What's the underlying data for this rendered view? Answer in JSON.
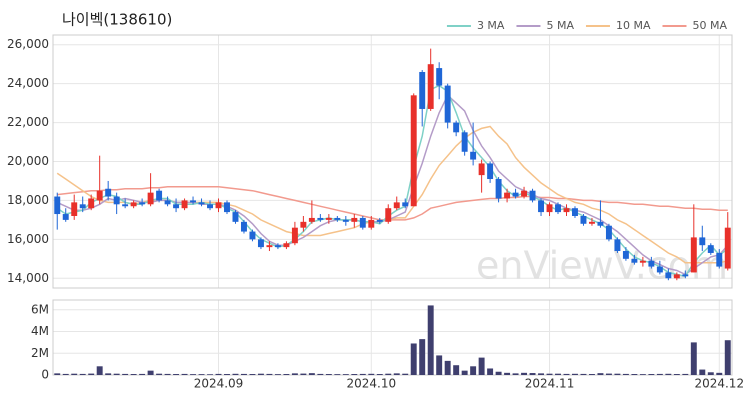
{
  "chart_data": [
    {
      "type": "candlestick",
      "title": "나이벡(138610)",
      "watermark": "enViewV.com",
      "categories": [
        null,
        null,
        null,
        null,
        null,
        null,
        null,
        null,
        null,
        null,
        null,
        null,
        null,
        null,
        null,
        null,
        null,
        null,
        null,
        null,
        null,
        null,
        null,
        null,
        null,
        null,
        null,
        null,
        null,
        null,
        null,
        null,
        null,
        null,
        null,
        null,
        null,
        null,
        null,
        null,
        null,
        null,
        null,
        null,
        null,
        null,
        null,
        null,
        null,
        null,
        null,
        null,
        null,
        null,
        null,
        null,
        null,
        null,
        null,
        null,
        null,
        null,
        null,
        null,
        null,
        null,
        null,
        null,
        null,
        null,
        null,
        null,
        null,
        null,
        null,
        null,
        null,
        null,
        null,
        null
      ],
      "open": [
        18200,
        17300,
        17200,
        17800,
        17600,
        18000,
        18600,
        18200,
        17800,
        17700,
        17900,
        17800,
        18500,
        18000,
        17800,
        17600,
        18000,
        17900,
        17800,
        17600,
        17900,
        17400,
        16900,
        16400,
        16000,
        15600,
        15700,
        15600,
        15800,
        16600,
        16900,
        17100,
        17000,
        17100,
        17000,
        16900,
        17100,
        16600,
        17000,
        16900,
        17600,
        17900,
        17700,
        24600,
        22700,
        24800,
        23900,
        22000,
        21500,
        20500,
        19300,
        19900,
        19100,
        18100,
        18400,
        18200,
        18500,
        18000,
        17400,
        17800,
        17400,
        17600,
        17200,
        16800,
        16900,
        16700,
        16000,
        15400,
        15000,
        14800,
        14900,
        14600,
        14300,
        14000,
        14200,
        14300,
        16100,
        15700,
        15300,
        14500
      ],
      "high": [
        18400,
        17600,
        18300,
        18200,
        18300,
        20300,
        19000,
        18400,
        18100,
        18000,
        18100,
        19400,
        18600,
        18200,
        18100,
        18100,
        18200,
        18100,
        18000,
        18100,
        18000,
        17500,
        17000,
        16500,
        16100,
        15900,
        15800,
        15900,
        16900,
        17200,
        18000,
        17300,
        17300,
        17200,
        17200,
        17300,
        17200,
        17200,
        17100,
        17800,
        18200,
        18100,
        23500,
        24700,
        25800,
        25100,
        24000,
        22100,
        21600,
        22000,
        20100,
        20000,
        19200,
        18600,
        18600,
        18700,
        18600,
        18100,
        17900,
        17900,
        17800,
        17700,
        17300,
        17100,
        18000,
        16800,
        16100,
        15600,
        15200,
        15100,
        15100,
        14900,
        14500,
        14300,
        14400,
        17800,
        16700,
        15800,
        15500,
        17400
      ],
      "low": [
        16500,
        16900,
        17000,
        17400,
        17500,
        17800,
        18000,
        17300,
        17600,
        17600,
        17700,
        17700,
        17900,
        17700,
        17400,
        17500,
        17800,
        17700,
        17500,
        17400,
        17300,
        16800,
        16300,
        15900,
        15500,
        15400,
        15500,
        15500,
        15700,
        16400,
        16800,
        16900,
        16800,
        16900,
        16700,
        16600,
        16500,
        16500,
        16800,
        16800,
        17500,
        17600,
        17700,
        21800,
        22600,
        23200,
        21700,
        21300,
        20300,
        19800,
        18400,
        18900,
        17900,
        17900,
        18100,
        18100,
        17900,
        17200,
        17200,
        17300,
        17200,
        17100,
        16700,
        16700,
        16600,
        15900,
        15300,
        14900,
        14700,
        14600,
        14500,
        14200,
        13900,
        13900,
        14000,
        14300,
        15400,
        15200,
        14500,
        14400
      ],
      "close": [
        17300,
        17000,
        17900,
        17600,
        18100,
        18500,
        18200,
        17800,
        17700,
        17900,
        17800,
        18400,
        18000,
        17800,
        17600,
        18000,
        17900,
        17800,
        17600,
        17900,
        17400,
        16900,
        16400,
        16000,
        15600,
        15700,
        15600,
        15800,
        16600,
        16900,
        17100,
        17000,
        17100,
        17000,
        16900,
        17100,
        16600,
        17000,
        16900,
        17600,
        17900,
        17700,
        23400,
        22700,
        25000,
        23900,
        22000,
        21500,
        20500,
        20100,
        19900,
        19100,
        18100,
        18400,
        18200,
        18500,
        18000,
        17400,
        17800,
        17400,
        17600,
        17200,
        16800,
        16900,
        16700,
        16000,
        15400,
        15000,
        14800,
        14900,
        14600,
        14300,
        14000,
        14200,
        14100,
        16100,
        15700,
        15300,
        14600,
        16600
      ],
      "up_color": "#e8302a",
      "down_color": "#1f66d6",
      "series": [
        {
          "name": "3 MA",
          "color": "#7fd1c7",
          "values": [
            17600,
            17300,
            17400,
            17500,
            17900,
            18100,
            18300,
            18200,
            17900,
            17800,
            17800,
            18000,
            18100,
            18100,
            17800,
            17800,
            17800,
            17900,
            17800,
            17800,
            17600,
            17400,
            16900,
            16400,
            16000,
            15800,
            15600,
            15700,
            16000,
            16400,
            16900,
            17000,
            17100,
            17000,
            17000,
            17000,
            16900,
            16900,
            16800,
            17200,
            17500,
            17700,
            19700,
            21300,
            23700,
            23900,
            23600,
            22500,
            21300,
            20700,
            20200,
            19700,
            19000,
            18500,
            18200,
            18400,
            18200,
            18000,
            17700,
            17500,
            17600,
            17400,
            17200,
            17000,
            16800,
            16500,
            16000,
            15500,
            15100,
            14900,
            14800,
            14600,
            14300,
            14200,
            14100,
            14800,
            15300,
            15700,
            15200,
            15500
          ]
        },
        {
          "name": "5 MA",
          "color": "#b49cc8",
          "values": [
            17900,
            17700,
            17500,
            17500,
            17600,
            17800,
            18100,
            18000,
            18100,
            18000,
            17900,
            17900,
            18000,
            18000,
            17900,
            17900,
            17900,
            17800,
            17800,
            17800,
            17700,
            17500,
            17200,
            16800,
            16300,
            15900,
            15700,
            15700,
            15900,
            16100,
            16400,
            16700,
            16900,
            17000,
            17000,
            17000,
            16900,
            16900,
            16900,
            17000,
            17200,
            17400,
            18700,
            19900,
            21300,
            22500,
            23400,
            23000,
            22600,
            21600,
            20800,
            20200,
            19500,
            19100,
            18700,
            18500,
            18300,
            18100,
            18000,
            17800,
            17600,
            17500,
            17400,
            17200,
            17000,
            16700,
            16400,
            16000,
            15600,
            15200,
            14900,
            14700,
            14500,
            14400,
            14200,
            14500,
            14800,
            15100,
            15200,
            15700
          ]
        },
        {
          "name": "10 MA",
          "color": "#f5c28a",
          "values": [
            19400,
            19100,
            18800,
            18500,
            18200,
            18000,
            17900,
            17900,
            17900,
            17800,
            17900,
            18000,
            18000,
            18000,
            17900,
            17900,
            17900,
            17900,
            17900,
            17900,
            17800,
            17700,
            17500,
            17300,
            17000,
            16800,
            16600,
            16400,
            16300,
            16200,
            16200,
            16200,
            16300,
            16400,
            16500,
            16600,
            16800,
            16900,
            16900,
            17000,
            17100,
            17100,
            17700,
            18300,
            19100,
            19800,
            20300,
            20800,
            21200,
            21500,
            21700,
            21800,
            21300,
            20900,
            20200,
            19700,
            19300,
            18900,
            18600,
            18300,
            18100,
            17900,
            17800,
            17600,
            17500,
            17300,
            17000,
            16800,
            16500,
            16200,
            15900,
            15600,
            15300,
            15100,
            14800,
            14800,
            14800,
            14800,
            14800,
            14900
          ]
        },
        {
          "name": "50 MA",
          "color": "#f29a8e",
          "values": [
            18300,
            18350,
            18400,
            18450,
            18500,
            18500,
            18550,
            18550,
            18600,
            18600,
            18600,
            18650,
            18650,
            18700,
            18700,
            18700,
            18700,
            18700,
            18700,
            18700,
            18650,
            18600,
            18550,
            18500,
            18400,
            18300,
            18200,
            18100,
            18000,
            17900,
            17800,
            17700,
            17600,
            17500,
            17400,
            17300,
            17200,
            17100,
            17000,
            17000,
            17000,
            17000,
            17100,
            17300,
            17600,
            17700,
            17800,
            17900,
            17950,
            18000,
            18050,
            18100,
            18100,
            18150,
            18150,
            18200,
            18200,
            18150,
            18150,
            18100,
            18100,
            18050,
            18000,
            18000,
            17950,
            17900,
            17900,
            17850,
            17800,
            17800,
            17750,
            17700,
            17700,
            17650,
            17600,
            17600,
            17550,
            17550,
            17500,
            17500
          ]
        }
      ],
      "ylim": [
        13500,
        26500
      ],
      "yticks": [
        {
          "value": 14000,
          "label": "14,000"
        },
        {
          "value": 16000,
          "label": "16,000"
        },
        {
          "value": 18000,
          "label": "18,000"
        },
        {
          "value": 20000,
          "label": "20,000"
        },
        {
          "value": 22000,
          "label": "22,000"
        },
        {
          "value": 24000,
          "label": "24,000"
        },
        {
          "value": 26000,
          "label": "26,000"
        }
      ],
      "grid": true,
      "legend": "top-right"
    },
    {
      "type": "bar",
      "color": "#3f3f6e",
      "categories": [
        null,
        null,
        null,
        null,
        null,
        null,
        null,
        null,
        null,
        null,
        null,
        null,
        null,
        null,
        null,
        null,
        null,
        null,
        null,
        null,
        null,
        null,
        null,
        null,
        null,
        null,
        null,
        null,
        null,
        null,
        null,
        null,
        null,
        null,
        null,
        null,
        null,
        null,
        null,
        null,
        null,
        null,
        null,
        null,
        null,
        null,
        null,
        null,
        null,
        null,
        null,
        null,
        null,
        null,
        null,
        null,
        null,
        null,
        null,
        null,
        null,
        null,
        null,
        null,
        null,
        null,
        null,
        null,
        null,
        null,
        null,
        null,
        null,
        null,
        null,
        null,
        null,
        null,
        null,
        null
      ],
      "values": [
        150000,
        100000,
        120000,
        100000,
        130000,
        800000,
        150000,
        120000,
        100000,
        90000,
        100000,
        400000,
        120000,
        100000,
        90000,
        100000,
        80000,
        80000,
        70000,
        100000,
        90000,
        110000,
        100000,
        90000,
        120000,
        100000,
        80000,
        90000,
        150000,
        130000,
        170000,
        100000,
        90000,
        80000,
        80000,
        90000,
        100000,
        110000,
        90000,
        120000,
        150000,
        120000,
        2900000,
        3300000,
        6400000,
        1800000,
        1300000,
        900000,
        400000,
        800000,
        1600000,
        600000,
        300000,
        200000,
        150000,
        200000,
        180000,
        150000,
        120000,
        120000,
        100000,
        110000,
        100000,
        90000,
        170000,
        130000,
        120000,
        100000,
        90000,
        80000,
        90000,
        100000,
        110000,
        90000,
        100000,
        3000000,
        500000,
        250000,
        200000,
        3200000
      ],
      "ylim": [
        0,
        6900000
      ],
      "yticks": [
        {
          "value": 0,
          "label": "0"
        },
        {
          "value": 2000000,
          "label": "2M"
        },
        {
          "value": 4000000,
          "label": "4M"
        },
        {
          "value": 6000000,
          "label": "6M"
        }
      ],
      "xticks": [
        {
          "value": 19,
          "label": "2024.09"
        },
        {
          "value": 37,
          "label": "2024.10"
        },
        {
          "value": 58,
          "label": "2024.11"
        },
        {
          "value": 78,
          "label": "2024.12"
        }
      ],
      "grid": true
    }
  ]
}
